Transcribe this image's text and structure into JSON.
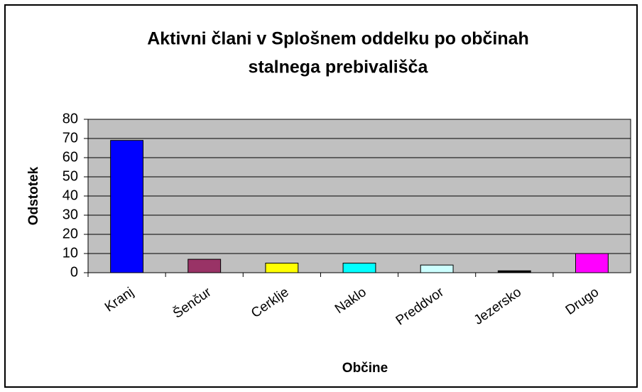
{
  "chart_data": {
    "type": "bar",
    "title": [
      "Aktivni člani v Splošnem oddelku po občinah",
      "stalnega prebivališča"
    ],
    "x_label": "Občine",
    "y_label": "Odstotek",
    "categories": [
      "Kranj",
      "Šenčur",
      "Cerklje",
      "Naklo",
      "Preddvor",
      "Jezersko",
      "Drugo"
    ],
    "values": [
      69,
      7,
      5,
      5,
      4,
      1,
      10
    ],
    "colors": [
      "#0000ff",
      "#993366",
      "#ffff00",
      "#00ffff",
      "#ccffff",
      "#000000",
      "#ff00ff"
    ],
    "ylim": [
      0,
      80
    ],
    "yticks": [
      0,
      10,
      20,
      30,
      40,
      50,
      60,
      70,
      80
    ],
    "grid": true
  }
}
